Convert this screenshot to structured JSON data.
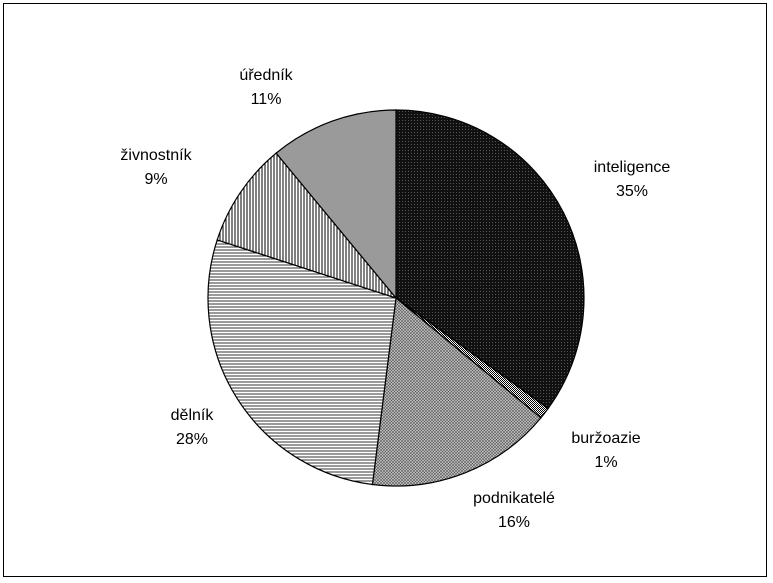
{
  "chart_data": {
    "type": "pie",
    "title": "",
    "slices": [
      {
        "label": "inteligence",
        "value": 35,
        "value_label": "35%",
        "color": "#1c1c1c",
        "pattern": "dark-dots"
      },
      {
        "label": "buržoazie",
        "value": 1,
        "value_label": "1%",
        "color": "#d9d9d9",
        "pattern": "checker"
      },
      {
        "label": "podnikatelé",
        "value": 16,
        "value_label": "16%",
        "color": "#a6a6a6",
        "pattern": "fine-crosshatch"
      },
      {
        "label": "dělník",
        "value": 28,
        "value_label": "28%",
        "color": "#ffffff",
        "pattern": "horizontal-lines"
      },
      {
        "label": "živnostník",
        "value": 9,
        "value_label": "9%",
        "color": "#ffffff",
        "pattern": "vertical-lines"
      },
      {
        "label": "úředník",
        "value": 11,
        "value_label": "11%",
        "color": "#999999",
        "pattern": "solid-gray"
      }
    ],
    "start_angle_deg": 0,
    "direction": "clockwise",
    "legend": "none"
  }
}
